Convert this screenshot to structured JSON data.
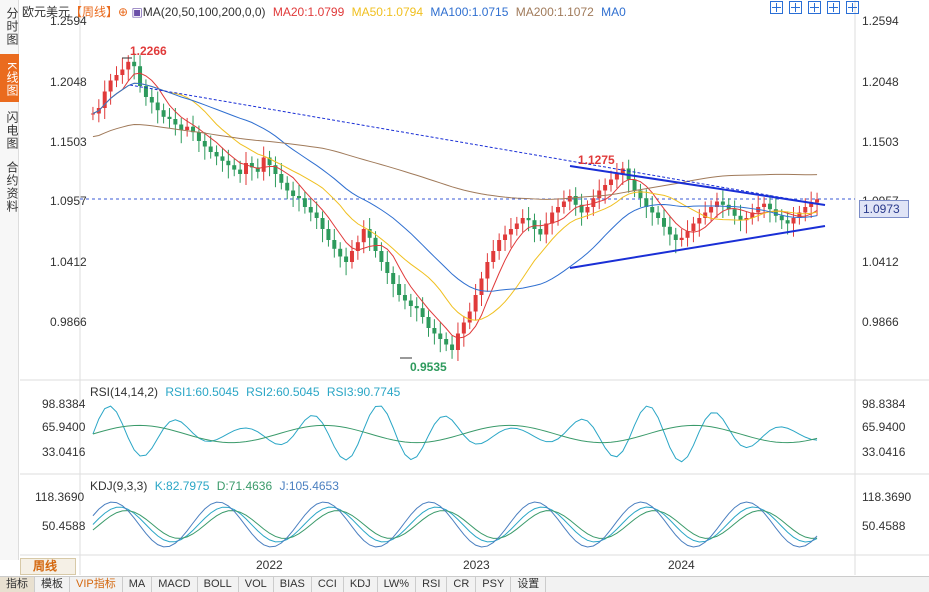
{
  "left_tabs": [
    {
      "label": "分时图",
      "active": false
    },
    {
      "label": "K线图",
      "active": true
    },
    {
      "label": "闪电图",
      "active": false
    },
    {
      "label": "合约资料",
      "active": false
    }
  ],
  "header": {
    "symbol": "欧元美元",
    "period": "【周线】",
    "ma_label": "MA(20,50,100,200,0,0)",
    "ma20": "MA20:1.0799",
    "ma50": "MA50:1.0794",
    "ma100": "MA100:1.0715",
    "ma200": "MA200:1.1072",
    "ma0": "MA0"
  },
  "colors": {
    "up": "#e03a3a",
    "down": "#2d9a5c",
    "ma20": "#e03a3a",
    "ma50": "#f0c020",
    "ma100": "#2f6fd0",
    "ma200": "#a07a5a",
    "triangle": "#1a2fd6",
    "rsi": "#2aa6c6",
    "kdj_k": "#2aa6c6",
    "kdj_d": "#3a9a6a",
    "kdj_j": "#4a7fc0"
  },
  "price_axis": {
    "ticks": [
      "1.2594",
      "1.2048",
      "1.1503",
      "1.0957",
      "1.0412",
      "0.9866"
    ],
    "current": "1.0973"
  },
  "annotations": {
    "high": "1.2266",
    "low": "0.9535",
    "swing_high": "1.1275"
  },
  "rsi": {
    "label": "RSI(14,14,2)",
    "rsi1": "RSI1:60.5045",
    "rsi2": "RSI2:60.5045",
    "rsi3": "RSI3:90.7745",
    "ticks": [
      "98.8384",
      "65.9400",
      "33.0416"
    ]
  },
  "kdj": {
    "label": "KDJ(9,3,3)",
    "k": "K:82.7975",
    "d": "D:71.4636",
    "j": "J:105.4653",
    "ticks": [
      "118.3690",
      "50.4588"
    ]
  },
  "time_axis": [
    "2022",
    "2023",
    "2024"
  ],
  "period_tab": "周线",
  "bottom_tabs": [
    "指标",
    "模板",
    "VIP指标",
    "MA",
    "MACD",
    "BOLL",
    "VOL",
    "BIAS",
    "CCI",
    "KDJ",
    "LW%",
    "RSI",
    "CR",
    "PSY",
    "设置"
  ],
  "chart_data": {
    "type": "candlestick",
    "title": "欧元美元【周线】",
    "ylim": [
      0.94,
      1.26
    ],
    "close_series": [
      1.175,
      1.18,
      1.195,
      1.205,
      1.21,
      1.215,
      1.222,
      1.218,
      1.2,
      1.19,
      1.185,
      1.178,
      1.172,
      1.17,
      1.165,
      1.16,
      1.163,
      1.158,
      1.15,
      1.145,
      1.14,
      1.136,
      1.132,
      1.128,
      1.124,
      1.12,
      1.13,
      1.126,
      1.122,
      1.135,
      1.128,
      1.12,
      1.112,
      1.105,
      1.1,
      1.098,
      1.09,
      1.085,
      1.08,
      1.07,
      1.06,
      1.052,
      1.045,
      1.04,
      1.05,
      1.058,
      1.07,
      1.062,
      1.05,
      1.04,
      1.03,
      1.02,
      1.01,
      1.005,
      1.0,
      0.998,
      0.99,
      0.98,
      0.975,
      0.97,
      0.965,
      0.96,
      0.975,
      0.985,
      0.995,
      1.01,
      1.025,
      1.04,
      1.05,
      1.06,
      1.065,
      1.07,
      1.075,
      1.08,
      1.078,
      1.07,
      1.065,
      1.075,
      1.085,
      1.09,
      1.095,
      1.1,
      1.092,
      1.085,
      1.09,
      1.098,
      1.105,
      1.11,
      1.115,
      1.12,
      1.125,
      1.115,
      1.105,
      1.098,
      1.09,
      1.085,
      1.08,
      1.072,
      1.065,
      1.06,
      1.062,
      1.068,
      1.075,
      1.08,
      1.085,
      1.09,
      1.095,
      1.092,
      1.088,
      1.082,
      1.078,
      1.08,
      1.085,
      1.09,
      1.093,
      1.088,
      1.082,
      1.078,
      1.075,
      1.08,
      1.085,
      1.09,
      1.094,
      1.097
    ]
  }
}
